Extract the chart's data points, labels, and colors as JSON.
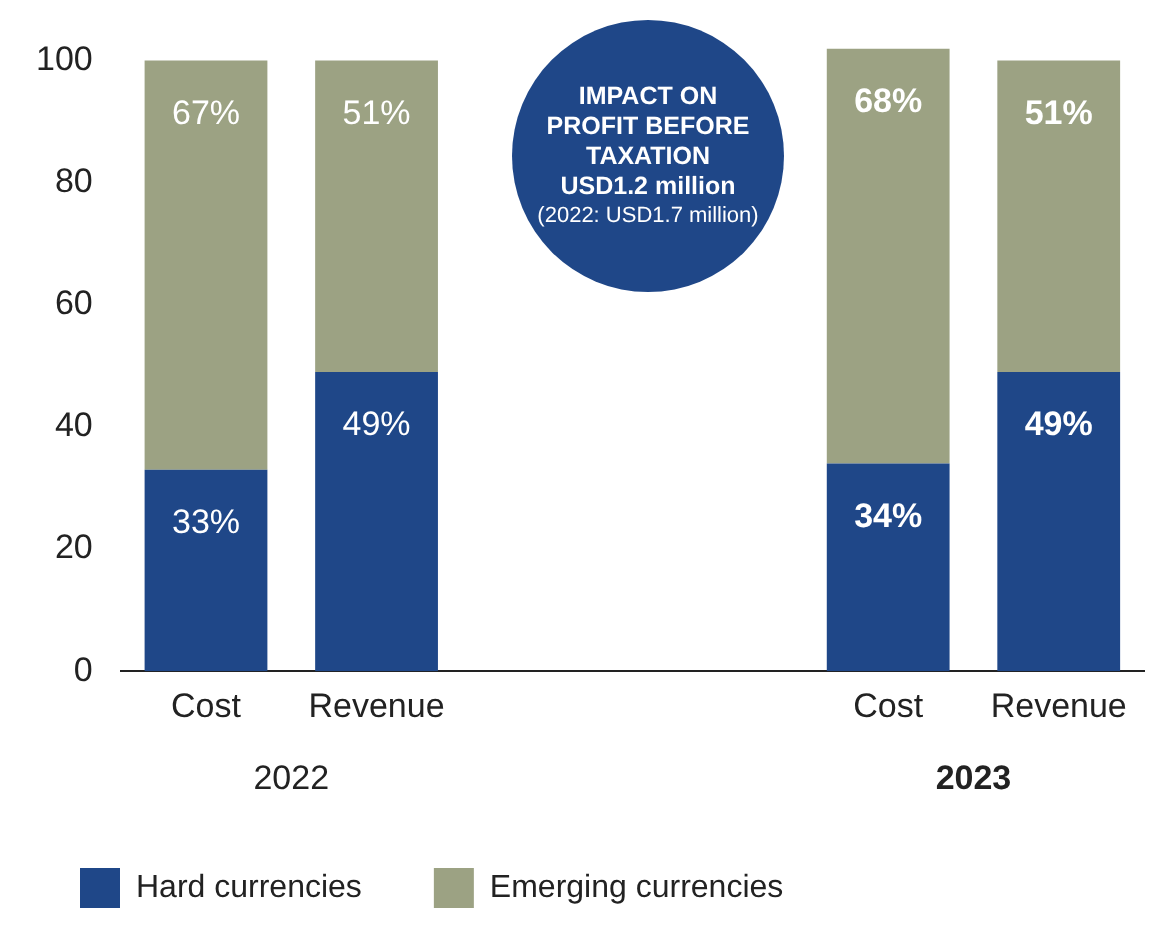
{
  "chart_data": {
    "type": "bar",
    "stacked": true,
    "categories": [
      "Cost",
      "Revenue",
      null,
      null,
      "Cost",
      "Revenue"
    ],
    "series": [
      {
        "name": "Hard currencies",
        "color": "#1f4788",
        "values": [
          33,
          49,
          null,
          null,
          34,
          49
        ],
        "value_labels": [
          "33%",
          "49%",
          null,
          null,
          "34%",
          "49%"
        ]
      },
      {
        "name": "Emerging currencies",
        "color": "#9ca283",
        "values": [
          67,
          51,
          null,
          null,
          68,
          51
        ],
        "value_labels": [
          "67%",
          "51%",
          null,
          null,
          "68%",
          "51%"
        ]
      }
    ],
    "ylim": [
      0,
      102
    ],
    "yticks": [
      0,
      20,
      40,
      60,
      80,
      100
    ],
    "grid": false,
    "legend": "bottom left",
    "annotations": [
      "2022",
      "2023",
      "IMPACT ON PROFIT BEFORE TAXATION",
      "USD1.2 million",
      "(2022: USD1.7 million)"
    ]
  }
}
